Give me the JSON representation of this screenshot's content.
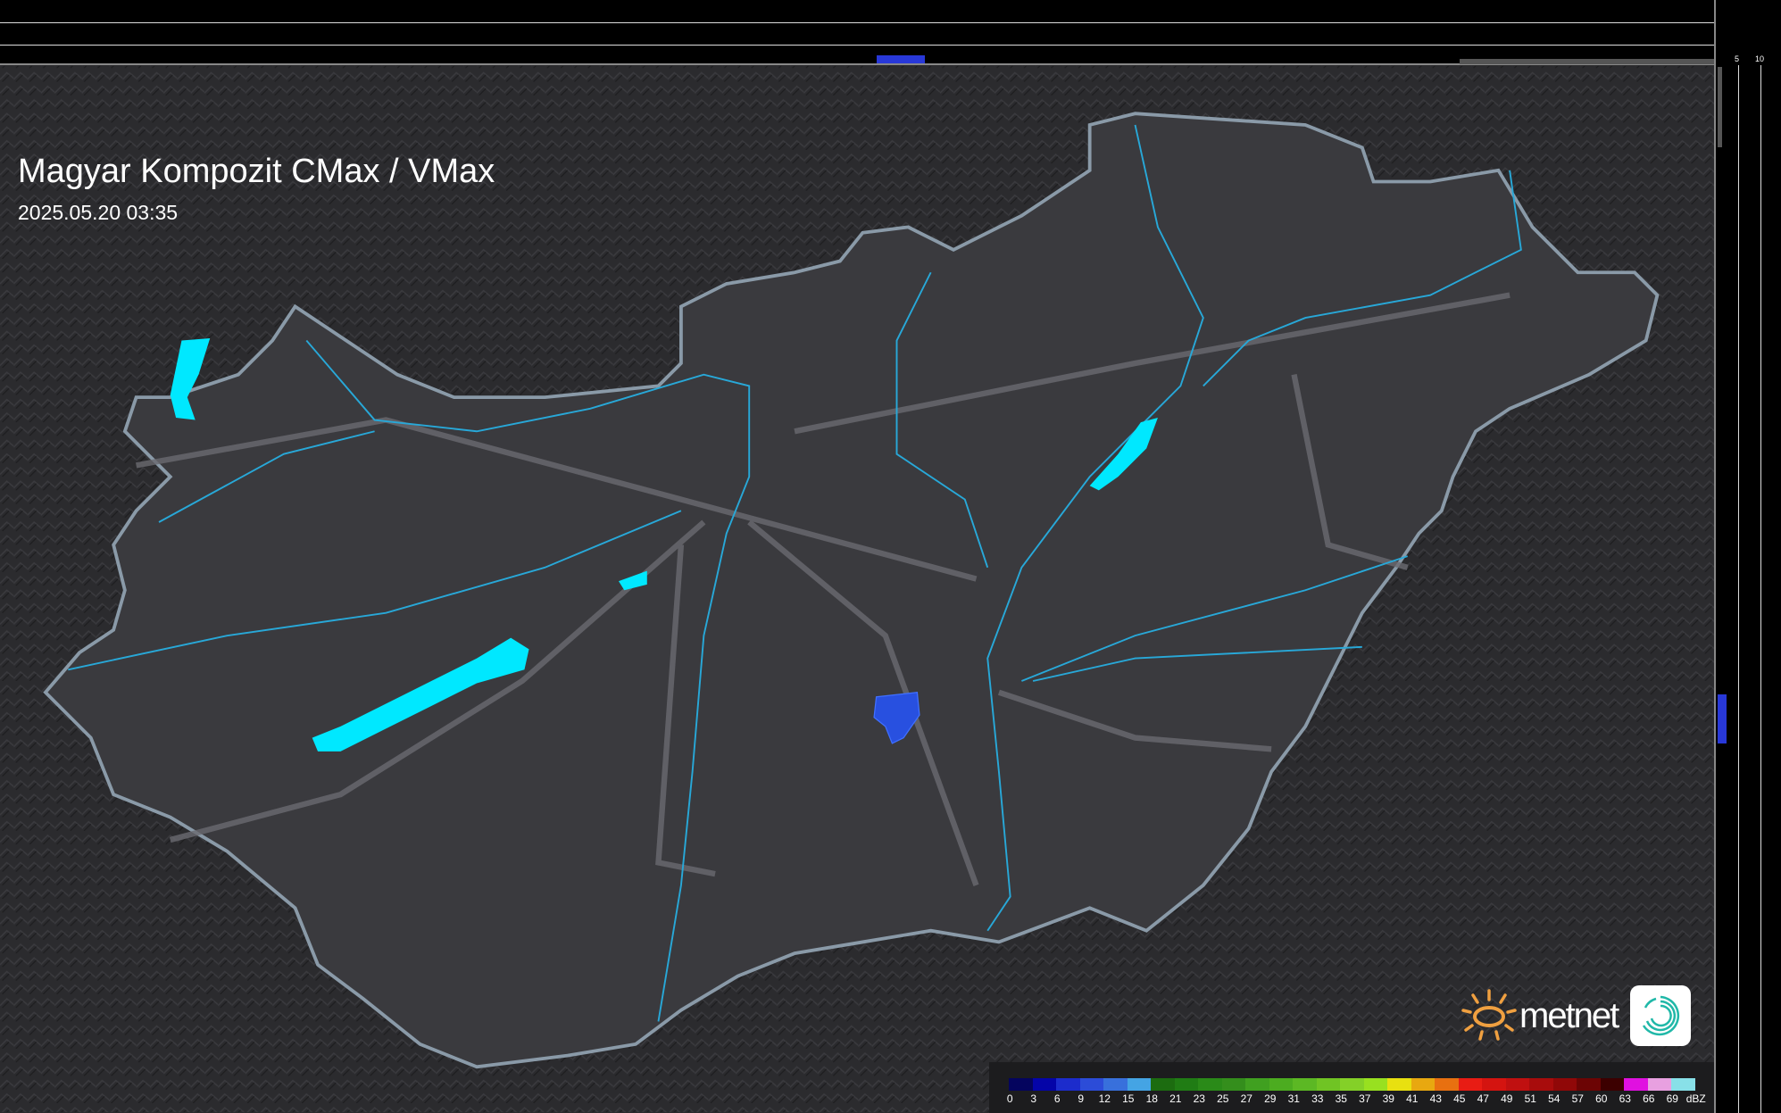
{
  "header": {
    "title": "Magyar Kompozit CMax / VMax",
    "timestamp": "2025.05.20 03:35"
  },
  "top_axis": {
    "labels": [
      "10",
      "5"
    ]
  },
  "right_axis": {
    "labels": [
      "5",
      "10"
    ]
  },
  "logo": {
    "text": "metnet"
  },
  "legend": {
    "unit": "dBZ",
    "labels": [
      "0",
      "3",
      "6",
      "9",
      "12",
      "15",
      "18",
      "21",
      "23",
      "25",
      "27",
      "29",
      "31",
      "33",
      "35",
      "37",
      "39",
      "41",
      "43",
      "45",
      "47",
      "49",
      "51",
      "54",
      "57",
      "60",
      "63",
      "66",
      "69"
    ],
    "colors": [
      "#04045e",
      "#0404a8",
      "#1c2ccc",
      "#2c4cd8",
      "#3870dc",
      "#44a4e4",
      "#1c6c10",
      "#207c14",
      "#2a8a18",
      "#348e1c",
      "#40a020",
      "#4cac20",
      "#5cb824",
      "#70c424",
      "#84d028",
      "#98e020",
      "#e8e010",
      "#e8a810",
      "#e87010",
      "#e81c14",
      "#d41410",
      "#c01010",
      "#a80c0c",
      "#900808",
      "#6c0404",
      "#3c0000",
      "#e010e0",
      "#e8a0e0",
      "#88e0e8"
    ],
    "accent_colors": {
      "lakes": "#00e8ff",
      "rivers": "#28a8d8",
      "radar_echo": "#2850e0"
    }
  }
}
